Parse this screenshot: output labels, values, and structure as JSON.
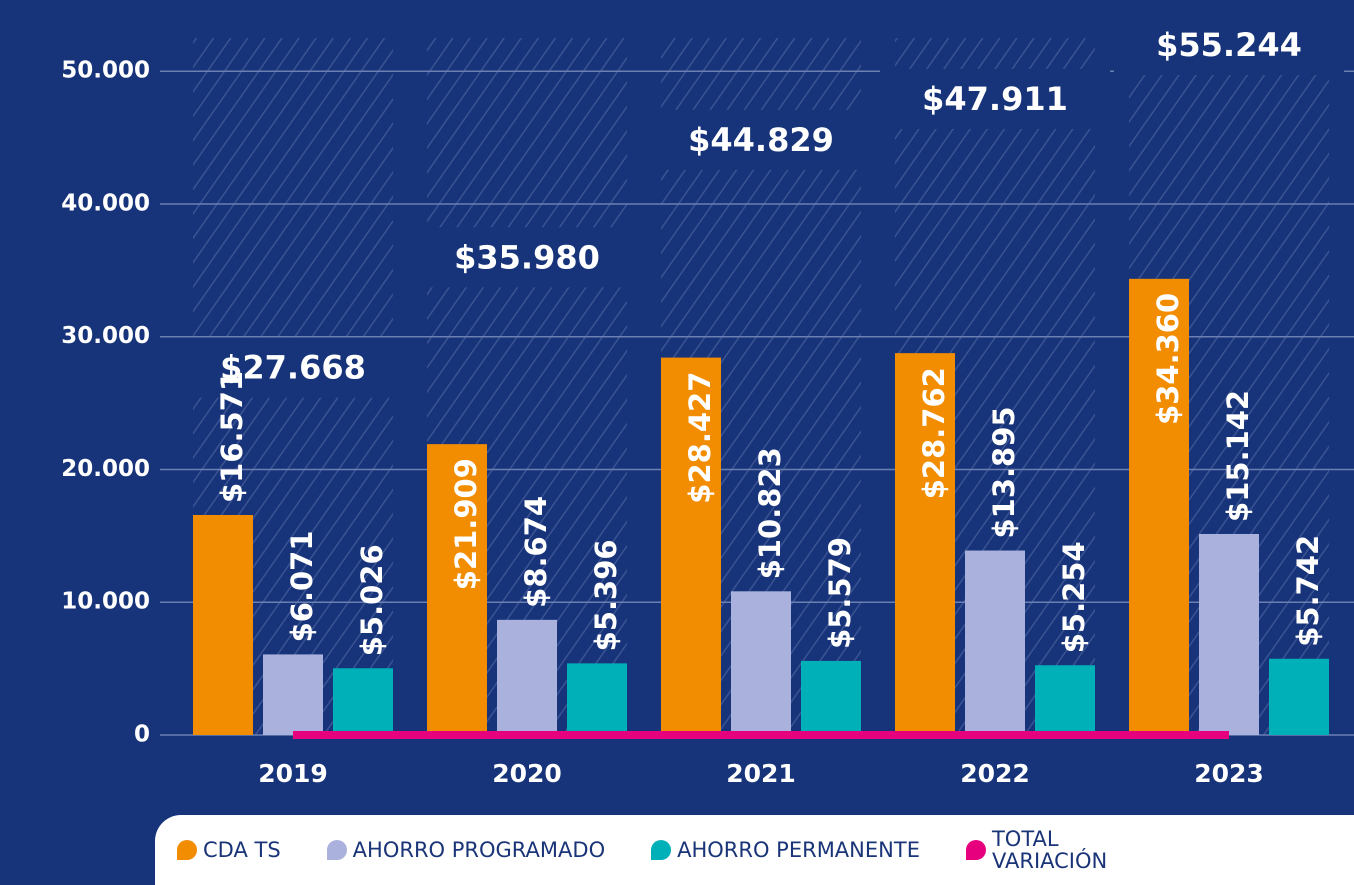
{
  "chart_data": {
    "type": "bar",
    "categories": [
      "2019",
      "2020",
      "2021",
      "2022",
      "2023"
    ],
    "ylim": [
      0,
      52500
    ],
    "yticks": [
      0,
      {
        "value": 10000,
        "label": "10.000"
      },
      {
        "value": 20000,
        "label": "20.000"
      },
      {
        "value": 30000,
        "label": "30.000"
      },
      {
        "value": 40000,
        "label": "40.000"
      },
      {
        "value": 50000,
        "label": "50.000"
      }
    ],
    "grid": true,
    "series": [
      {
        "name": "CDA TS",
        "color": "#f28c00",
        "values": [
          16571,
          21909,
          28427,
          28762,
          34360
        ],
        "value_labels": [
          "$16.571",
          "$21.909",
          "$28.427",
          "$28.762",
          "$34.360"
        ]
      },
      {
        "name": "AHORRO PROGRAMADO",
        "color": "#a9b1dc",
        "values": [
          6071,
          8674,
          10823,
          13895,
          15142
        ],
        "value_labels": [
          "$6.071",
          "$8.674",
          "$10.823",
          "$13.895",
          "$15.142"
        ]
      },
      {
        "name": "AHORRO PERMANENTE",
        "color": "#00b0b9",
        "values": [
          5026,
          5396,
          5579,
          5254,
          5742
        ],
        "value_labels": [
          "$5.026",
          "$5.396",
          "$5.579",
          "$5.254",
          "$5.742"
        ]
      },
      {
        "name": "TOTAL VARIACIÓN",
        "color": "#e6007e",
        "type": "line",
        "values": [
          0,
          0,
          0,
          0,
          0
        ]
      }
    ],
    "totals": [
      27668,
      35980,
      44829,
      47911,
      55244
    ],
    "total_labels": [
      "$27.668",
      "$35.980",
      "$44.829",
      "$47.911",
      "$55.244"
    ]
  }
}
